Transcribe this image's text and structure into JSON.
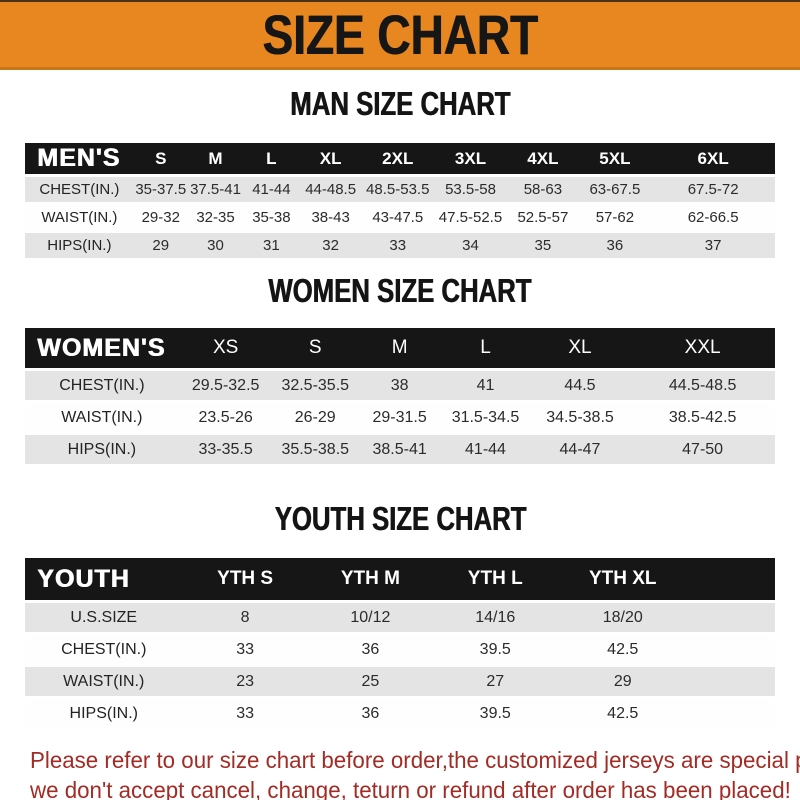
{
  "banner": {
    "title": "SIZE CHART"
  },
  "sections": {
    "men": {
      "heading": "MAN SIZE CHART",
      "table": {
        "header_label": "MEN'S",
        "columns": [
          "S",
          "M",
          "L",
          "XL",
          "2XL",
          "3XL",
          "4XL",
          "5XL",
          "6XL"
        ],
        "col_widths": [
          "14.5%",
          "7.2%",
          "7.4%",
          "7.5%",
          "8.3%",
          "9.6%",
          "9.8%",
          "9.5%",
          "9.7%",
          "16.5%"
        ],
        "rows": [
          {
            "label": "CHEST(IN.)",
            "values": [
              "35-37.5",
              "37.5-41",
              "41-44",
              "44-48.5",
              "48.5-53.5",
              "53.5-58",
              "58-63",
              "63-67.5",
              "67.5-72"
            ]
          },
          {
            "label": "WAIST(IN.)",
            "values": [
              "29-32",
              "32-35",
              "35-38",
              "38-43",
              "43-47.5",
              "47.5-52.5",
              "52.5-57",
              "57-62",
              "62-66.5"
            ]
          },
          {
            "label": "HIPS(IN.)",
            "values": [
              "29",
              "30",
              "31",
              "32",
              "33",
              "34",
              "35",
              "36",
              "37"
            ]
          }
        ]
      }
    },
    "women": {
      "heading": "WOMEN SIZE CHART",
      "table": {
        "header_label": "WOMEN'S",
        "columns": [
          "XS",
          "S",
          "M",
          "L",
          "XL",
          "XXL"
        ],
        "col_widths": [
          "20.5%",
          "12.5%",
          "11.4%",
          "11.1%",
          "11.8%",
          "13.4%",
          "19.3%"
        ],
        "rows": [
          {
            "label": "CHEST(IN.)",
            "values": [
              "29.5-32.5",
              "32.5-35.5",
              "38",
              "41",
              "44.5",
              "44.5-48.5"
            ]
          },
          {
            "label": "WAIST(IN.)",
            "values": [
              "23.5-26",
              "26-29",
              "29-31.5",
              "31.5-34.5",
              "34.5-38.5",
              "38.5-42.5"
            ]
          },
          {
            "label": "HIPS(IN.)",
            "values": [
              "33-35.5",
              "35.5-38.5",
              "38.5-41",
              "41-44",
              "44-47",
              "47-50"
            ]
          }
        ]
      }
    },
    "youth": {
      "heading": "YOUTH SIZE CHART",
      "table": {
        "header_label": "YOUTH",
        "columns": [
          "YTH S",
          "YTH M",
          "YTH L",
          "YTH XL"
        ],
        "col_widths": [
          "21%",
          "16.7%",
          "16.7%",
          "16.6%",
          "17.4%",
          "11.6%"
        ],
        "filler_col": true,
        "rows": [
          {
            "label": "U.S.SIZE",
            "values": [
              "8",
              "10/12",
              "14/16",
              "18/20"
            ]
          },
          {
            "label": "CHEST(IN.)",
            "values": [
              "33",
              "36",
              "39.5",
              "42.5"
            ]
          },
          {
            "label": "WAIST(IN.)",
            "values": [
              "23",
              "25",
              "27",
              "29"
            ]
          },
          {
            "label": "HIPS(IN.)",
            "values": [
              "33",
              "36",
              "39.5",
              "42.5"
            ]
          }
        ]
      }
    }
  },
  "note": {
    "line1": "Please refer to our size chart before order,the customized jerseys are special products,",
    "line2": "we don't accept cancel, change, teturn or refund after order has been placed!"
  },
  "colors": {
    "banner_orange": "#E8861F",
    "banner_border_bottom": "#C8761A",
    "table_header_black": "#161616",
    "row_gray": "#E4E4E5",
    "note_red": "#A32B25"
  }
}
